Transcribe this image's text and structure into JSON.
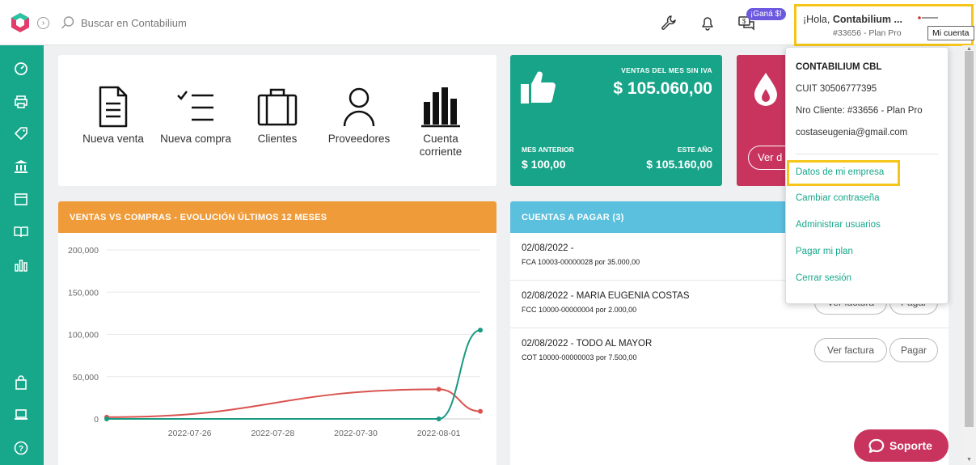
{
  "topbar": {
    "search_placeholder": "Buscar en Contabilium",
    "promo_badge": "¡Ganá $!",
    "greeting": "¡Hola, ",
    "account_name": "Contabilium ...",
    "account_number": "#33656 - Plan Pro",
    "tooltip": "Mi cuenta"
  },
  "sidebar": {
    "items": [
      "dashboard-icon",
      "printer-icon",
      "tag-icon",
      "bank-icon",
      "calendar-icon",
      "book-icon",
      "bar-chart-icon",
      "bag-icon",
      "laptop-icon",
      "help-icon"
    ]
  },
  "quick_actions": [
    {
      "label": "Nueva venta",
      "icon": "document-icon"
    },
    {
      "label": "Nueva compra",
      "icon": "checklist-icon"
    },
    {
      "label": "Clientes",
      "icon": "briefcase-icon"
    },
    {
      "label": "Proveedores",
      "icon": "person-icon"
    },
    {
      "label": "Cuenta corriente",
      "icon": "bars-icon"
    }
  ],
  "sales_card": {
    "title": "VENTAS DEL MES SIN IVA",
    "value": "$ 105.060,00",
    "prev_label": "MES ANTERIOR",
    "prev_value": "$ 100,00",
    "year_label": "ESTE AÑO",
    "year_value": "$ 105.160,00"
  },
  "pink_card": {
    "button": "Ver d"
  },
  "chart_panel": {
    "title": "VENTAS VS COMPRAS - EVOLUCIÓN ÚLTIMOS 12 MESES"
  },
  "chart_data": {
    "type": "line",
    "title": "",
    "xlabel": "",
    "ylabel": "",
    "ylim": [
      0,
      200000
    ],
    "yticks": [
      "200,000",
      "150,000",
      "100,000",
      "50,000",
      "0"
    ],
    "xticks": [
      "2022-07-26",
      "2022-07-28",
      "2022-07-30",
      "2022-08-01"
    ],
    "series": [
      {
        "color": "#d9534f",
        "points": [
          [
            "2022-07-24",
            2000
          ],
          [
            "2022-08-01",
            35000
          ],
          [
            "2022-08-02",
            9000
          ]
        ]
      },
      {
        "color": "#1a9a82",
        "points": [
          [
            "2022-07-24",
            0
          ],
          [
            "2022-08-01",
            0
          ],
          [
            "2022-08-02",
            105000
          ]
        ]
      }
    ],
    "grid": true
  },
  "cuentas": {
    "title": "CUENTAS A PAGAR (3)",
    "rows": [
      {
        "title": "02/08/2022 -",
        "sub": "FCA 10003-00000028 por 35.000,00"
      },
      {
        "title": "02/08/2022 - MARIA EUGENIA COSTAS",
        "sub": "FCC 10000-00000004 por 2.000,00"
      },
      {
        "title": "02/08/2022 - TODO AL MAYOR",
        "sub": "COT 10000-00000003 por 7.500,00"
      }
    ],
    "ver_label": "Ver factura",
    "pagar_label": "Pagar"
  },
  "dropdown": {
    "company": "CONTABILIUM CBL",
    "cuit": "CUIT 30506777395",
    "client": "Nro Cliente: #33656 - Plan Pro",
    "email": "costaseugenia@gmail.com",
    "links": [
      "Datos de mi empresa",
      "Cambiar contraseña",
      "Administrar usuarios",
      "Pagar mi plan",
      "Cerrar sesión"
    ]
  },
  "support": {
    "label": "Soporte"
  },
  "colors": {
    "brand": "#17a88b",
    "accent": "#c9345f",
    "orange": "#f09b3a",
    "blue": "#5bc0de",
    "highlight": "#f6c519"
  }
}
